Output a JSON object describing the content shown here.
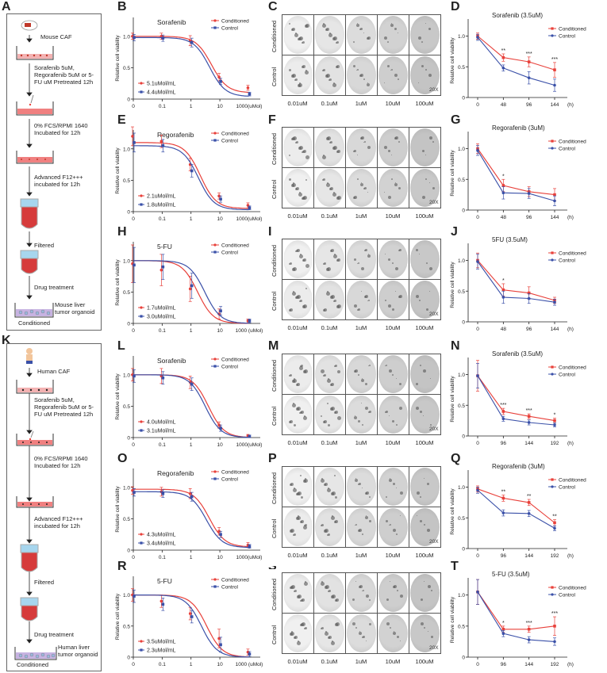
{
  "panel_letters": {
    "A": "A",
    "B": "B",
    "C": "C",
    "D": "D",
    "E": "E",
    "F": "F",
    "G": "G",
    "H": "H",
    "I": "I",
    "J": "J",
    "K": "K",
    "L": "L",
    "M": "M",
    "N": "N",
    "O": "O",
    "P": "P",
    "Q": "Q",
    "R": "R",
    "S": "S",
    "T": "T"
  },
  "flowA": {
    "source": "Mouse CAF",
    "step1": "Sorafenib 5uM, Regorafenib 5uM or 5-FU uM Pretreated 12h",
    "step2": "0% FCS/RPMI 1640 Incubated for 12h",
    "step3": "Advanced F12+++ incubated for 12h",
    "step4": "Filtered",
    "step5": "Drug treatment",
    "organoid": "Mouse liver tumor organoid",
    "conditioned": "Conditioned"
  },
  "flowK": {
    "source": "Human CAF",
    "step1": "Sorafenib 5uM, Regorafenib 5uM or 5-FU uM Pretreated 12h",
    "step2": "0% FCS/RPMI 1640 Incubated for 12h",
    "step3": "Advanced F12+++ incubated for 12h",
    "step4": "Filtered",
    "step5": "Drug treatment",
    "organoid": "Human liver tumor organoid",
    "conditioned": "Conditioned"
  },
  "colors": {
    "conditioned": "#e8403a",
    "control": "#3a50a8"
  },
  "legend": {
    "conditioned": "Conditioned",
    "control": "Control"
  },
  "grid_labels": {
    "rows": [
      "Conditioned",
      "Control"
    ],
    "cols": [
      "0.01uM",
      "0.1uM",
      "1uM",
      "10uM",
      "100uM"
    ],
    "magnification": "20X"
  },
  "chart_data": [
    {
      "id": "B",
      "type": "line",
      "title": "Sorafenib",
      "ylabel": "Relative cell viability",
      "xunit": "1000(uMol)",
      "xticks": [
        "0",
        "0.1",
        "1",
        "10"
      ],
      "yticks": [
        "0",
        "0.5",
        "1.0"
      ],
      "xscale": "log",
      "ylim": [
        0,
        1.3
      ],
      "ic50": {
        "conditioned": "5.1uMol/mL",
        "control": "4.4uMol/mL"
      },
      "x": [
        0.01,
        0.1,
        1,
        10,
        100
      ],
      "series": [
        {
          "name": "Conditioned",
          "values": [
            1.0,
            1.0,
            0.93,
            0.35,
            0.18
          ],
          "err": [
            0.05,
            0.05,
            0.08,
            0.06,
            0.04
          ],
          "ec50": 5.1,
          "top": 1.0,
          "bottom": 0.1
        },
        {
          "name": "Control",
          "values": [
            0.98,
            0.97,
            0.9,
            0.28,
            0.08
          ],
          "err": [
            0.05,
            0.05,
            0.07,
            0.05,
            0.03
          ],
          "ec50": 4.4,
          "top": 0.98,
          "bottom": 0.04
        }
      ]
    },
    {
      "id": "E",
      "type": "line",
      "title": "Regorafenib",
      "ylabel": "Relative cell viability",
      "xunit": "1000(uMol)",
      "xticks": [
        "0",
        "0.1",
        "1",
        "10"
      ],
      "yticks": [
        "0",
        "0.5",
        "1.0"
      ],
      "xscale": "log",
      "ylim": [
        0,
        1.3
      ],
      "ic50": {
        "conditioned": "2.1uMol/mL",
        "control": "1.8uMol/mL"
      },
      "x": [
        0.01,
        0.1,
        1,
        10,
        100
      ],
      "series": [
        {
          "name": "Conditioned",
          "values": [
            1.2,
            1.12,
            0.75,
            0.25,
            0.1
          ],
          "err": [
            0.15,
            0.1,
            0.1,
            0.05,
            0.04
          ],
          "ec50": 2.1,
          "top": 1.1,
          "bottom": 0.05
        },
        {
          "name": "Control",
          "values": [
            1.1,
            1.05,
            0.65,
            0.2,
            0.06
          ],
          "err": [
            0.15,
            0.1,
            0.1,
            0.05,
            0.03
          ],
          "ec50": 1.8,
          "top": 1.05,
          "bottom": 0.03
        }
      ]
    },
    {
      "id": "H",
      "type": "line",
      "title": "5-FU",
      "ylabel": "Relative cell viability",
      "xunit": "1000 (uMol)",
      "xticks": [
        "0",
        "0.1",
        "1",
        "10"
      ],
      "yticks": [
        "0",
        "0.5",
        "1.0"
      ],
      "xscale": "log",
      "ylim": [
        0,
        1.3
      ],
      "ic50": {
        "conditioned": "1.7uMol/mL",
        "control": "3.0uMol/mL"
      },
      "x": [
        0.01,
        0.1,
        1,
        10,
        100
      ],
      "series": [
        {
          "name": "Conditioned",
          "values": [
            0.95,
            0.85,
            0.55,
            0.15,
            0.04
          ],
          "err": [
            0.3,
            0.25,
            0.2,
            0.08,
            0.03
          ],
          "ec50": 1.7,
          "top": 1.0,
          "bottom": 0.0
        },
        {
          "name": "Control",
          "values": [
            0.93,
            0.9,
            0.6,
            0.2,
            0.04
          ],
          "err": [
            0.28,
            0.2,
            0.2,
            0.07,
            0.03
          ],
          "ec50": 3.0,
          "top": 1.0,
          "bottom": 0.0
        }
      ]
    },
    {
      "id": "L",
      "type": "line",
      "title": "Sorafenib",
      "ylabel": "Relative cell viability",
      "xunit": "1000(uMol)",
      "xticks": [
        "0",
        "0.1",
        "1",
        "10"
      ],
      "yticks": [
        "0",
        "0.5",
        "1.0"
      ],
      "xscale": "log",
      "ylim": [
        0,
        1.3
      ],
      "ic50": {
        "conditioned": "4.0uMol/mL",
        "control": "3.1uMol/mL"
      },
      "x": [
        0.01,
        0.1,
        1,
        10,
        100
      ],
      "series": [
        {
          "name": "Conditioned",
          "values": [
            1.0,
            0.98,
            0.88,
            0.2,
            0.03
          ],
          "err": [
            0.1,
            0.12,
            0.1,
            0.05,
            0.02
          ],
          "ec50": 4.0,
          "top": 1.0,
          "bottom": 0.0
        },
        {
          "name": "Control",
          "values": [
            0.98,
            0.95,
            0.85,
            0.15,
            0.02
          ],
          "err": [
            0.1,
            0.1,
            0.1,
            0.05,
            0.02
          ],
          "ec50": 3.1,
          "top": 1.0,
          "bottom": 0.0
        }
      ]
    },
    {
      "id": "O",
      "type": "line",
      "title": "Regorafenib",
      "ylabel": "Relative cell viability",
      "xunit": "1000(uMol)",
      "xticks": [
        "0",
        "0.1",
        "1",
        "10"
      ],
      "yticks": [
        "0",
        "0.5",
        "1.0"
      ],
      "xscale": "log",
      "ylim": [
        0,
        1.3
      ],
      "ic50": {
        "conditioned": "4.3uMol/mL",
        "control": "3.4uMol/mL"
      },
      "x": [
        0.01,
        0.1,
        1,
        10,
        100
      ],
      "series": [
        {
          "name": "Conditioned",
          "values": [
            0.95,
            0.93,
            0.9,
            0.3,
            0.08
          ],
          "err": [
            0.06,
            0.07,
            0.08,
            0.06,
            0.04
          ],
          "ec50": 4.3,
          "top": 0.97,
          "bottom": 0.05
        },
        {
          "name": "Control",
          "values": [
            0.92,
            0.9,
            0.85,
            0.25,
            0.06
          ],
          "err": [
            0.06,
            0.06,
            0.07,
            0.05,
            0.03
          ],
          "ec50": 3.4,
          "top": 0.93,
          "bottom": 0.04
        }
      ]
    },
    {
      "id": "R",
      "type": "line",
      "title": "5-FU",
      "ylabel": "Relative cell viability",
      "xunit": "1000 (uMol)",
      "xticks": [
        "0",
        "0.1",
        "1",
        "10"
      ],
      "yticks": [
        "0",
        "0.5",
        "1.0"
      ],
      "xscale": "log",
      "ylim": [
        0,
        1.3
      ],
      "ic50": {
        "conditioned": "3.5uMol/mL",
        "control": "2.3uMol/mL"
      },
      "x": [
        0.01,
        0.1,
        1,
        10,
        100
      ],
      "series": [
        {
          "name": "Conditioned",
          "values": [
            1.0,
            0.9,
            0.7,
            0.3,
            0.08
          ],
          "err": [
            0.1,
            0.1,
            0.1,
            0.15,
            0.05
          ],
          "ec50": 3.5,
          "top": 1.0,
          "bottom": 0.0
        },
        {
          "name": "Control",
          "values": [
            0.98,
            0.85,
            0.65,
            0.2,
            0.05
          ],
          "err": [
            0.1,
            0.1,
            0.1,
            0.12,
            0.04
          ],
          "ec50": 2.3,
          "top": 1.0,
          "bottom": 0.0
        }
      ]
    },
    {
      "id": "D",
      "type": "line",
      "title": "Sorafenib (3.5uM)",
      "ylabel": "Relative cell viability",
      "categories": [
        "0",
        "48",
        "96",
        "144"
      ],
      "xunit": "(h)",
      "yticks": [
        "0",
        "0.5",
        "1.0"
      ],
      "ylim": [
        0,
        1.2
      ],
      "annotations": [
        "",
        "**",
        "***",
        "***"
      ],
      "series": [
        {
          "name": "Conditioned",
          "values": [
            1.0,
            0.65,
            0.58,
            0.45
          ],
          "err": [
            0.05,
            0.06,
            0.08,
            0.12
          ]
        },
        {
          "name": "Control",
          "values": [
            0.98,
            0.48,
            0.32,
            0.2
          ],
          "err": [
            0.05,
            0.05,
            0.1,
            0.1
          ]
        }
      ]
    },
    {
      "id": "G",
      "type": "line",
      "title": "Regorafenib (3uM)",
      "ylabel": "Relative cell viability",
      "categories": [
        "0",
        "48",
        "96",
        "144"
      ],
      "xunit": "(h)",
      "yticks": [
        "0",
        "0.5",
        "1.0"
      ],
      "ylim": [
        0,
        1.2
      ],
      "annotations": [
        "",
        "*",
        "",
        ""
      ],
      "series": [
        {
          "name": "Conditioned",
          "values": [
            1.0,
            0.4,
            0.3,
            0.25
          ],
          "err": [
            0.08,
            0.1,
            0.08,
            0.1
          ]
        },
        {
          "name": "Control",
          "values": [
            0.97,
            0.28,
            0.27,
            0.15
          ],
          "err": [
            0.08,
            0.1,
            0.08,
            0.08
          ]
        }
      ]
    },
    {
      "id": "J",
      "type": "line",
      "title": "5FU (3.5uM)",
      "ylabel": "Relative cell viability",
      "categories": [
        "0",
        "48",
        "96",
        "144"
      ],
      "xunit": "(h)",
      "yticks": [
        "0",
        "0.5",
        "1.0"
      ],
      "ylim": [
        0,
        1.2
      ],
      "annotations": [
        "",
        "*",
        "",
        ""
      ],
      "series": [
        {
          "name": "Conditioned",
          "values": [
            1.0,
            0.52,
            0.47,
            0.35
          ],
          "err": [
            0.12,
            0.1,
            0.1,
            0.05
          ]
        },
        {
          "name": "Control",
          "values": [
            0.98,
            0.4,
            0.38,
            0.32
          ],
          "err": [
            0.12,
            0.1,
            0.08,
            0.05
          ]
        }
      ]
    },
    {
      "id": "N",
      "type": "line",
      "title": "Sorafenib (3.5uM)",
      "ylabel": "Relative cell viability",
      "categories": [
        "0",
        "96",
        "144",
        "192"
      ],
      "xunit": "(h)",
      "yticks": [
        "0",
        "0.5",
        "1.0"
      ],
      "ylim": [
        0,
        1.2
      ],
      "annotations": [
        "",
        "***",
        "***",
        "*"
      ],
      "series": [
        {
          "name": "Conditioned",
          "values": [
            0.98,
            0.4,
            0.32,
            0.25
          ],
          "err": [
            0.25,
            0.05,
            0.04,
            0.04
          ]
        },
        {
          "name": "Control",
          "values": [
            0.98,
            0.28,
            0.22,
            0.18
          ],
          "err": [
            0.2,
            0.04,
            0.04,
            0.03
          ]
        }
      ]
    },
    {
      "id": "Q",
      "type": "line",
      "title": "Regorafenib (3uM)",
      "ylabel": "Relative cell viability",
      "categories": [
        "0",
        "96",
        "144",
        "192"
      ],
      "xunit": "(h)",
      "yticks": [
        "0",
        "0.5",
        "1.0"
      ],
      "ylim": [
        0,
        1.2
      ],
      "annotations": [
        "",
        "**",
        "**",
        "**"
      ],
      "series": [
        {
          "name": "Conditioned",
          "values": [
            0.97,
            0.82,
            0.75,
            0.42
          ],
          "err": [
            0.05,
            0.05,
            0.05,
            0.05
          ]
        },
        {
          "name": "Control",
          "values": [
            0.95,
            0.58,
            0.57,
            0.33
          ],
          "err": [
            0.05,
            0.05,
            0.05,
            0.04
          ]
        }
      ]
    },
    {
      "id": "T",
      "type": "line",
      "title": "5-FU (3.5uM)",
      "ylabel": "Relative cell viability",
      "categories": [
        "0",
        "96",
        "144",
        "192"
      ],
      "xunit": "(h)",
      "yticks": [
        "0",
        "0.5",
        "1.0"
      ],
      "ylim": [
        0,
        1.2
      ],
      "annotations": [
        "",
        "*",
        "***",
        "***"
      ],
      "series": [
        {
          "name": "Conditioned",
          "values": [
            1.05,
            0.45,
            0.45,
            0.5
          ],
          "err": [
            0.2,
            0.05,
            0.05,
            0.15
          ]
        },
        {
          "name": "Control",
          "values": [
            1.05,
            0.38,
            0.28,
            0.25
          ],
          "err": [
            0.2,
            0.05,
            0.05,
            0.06
          ]
        }
      ]
    }
  ]
}
